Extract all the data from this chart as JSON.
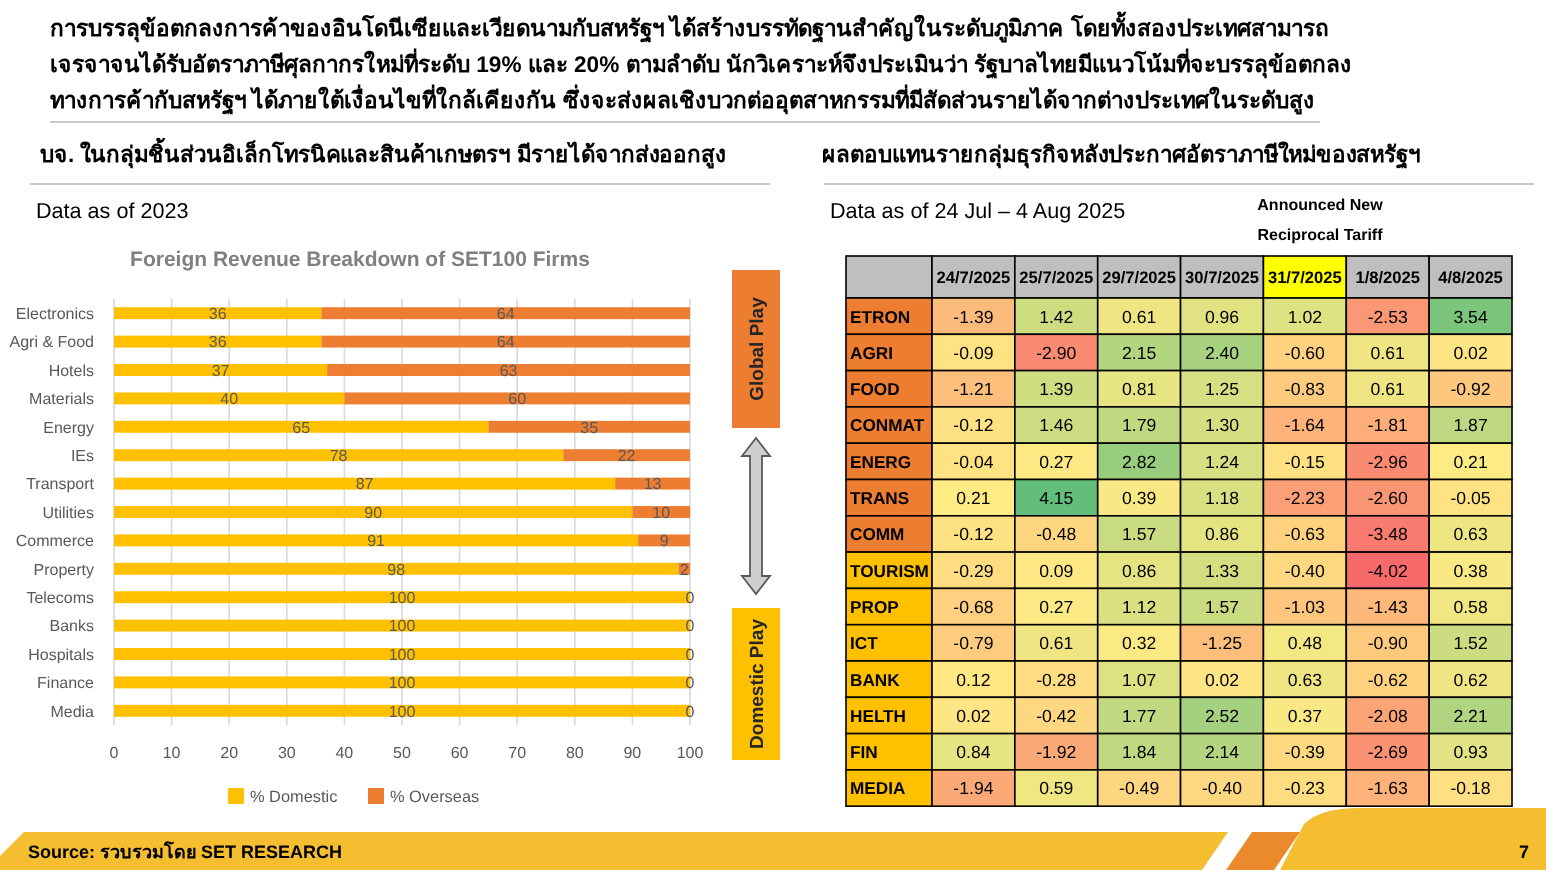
{
  "chart_data": [
    {
      "type": "bar",
      "orientation": "horizontal",
      "stacked": true,
      "title": "Foreign Revenue Breakdown of SET100 Firms",
      "categories": [
        "Electronics",
        "Agri & Food",
        "Hotels",
        "Materials",
        "Energy",
        "IEs",
        "Transport",
        "Utilities",
        "Commerce",
        "Property",
        "Telecoms",
        "Banks",
        "Hospitals",
        "Finance",
        "Media"
      ],
      "series": [
        {
          "name": "% Domestic",
          "color": "#ffc000",
          "values": [
            36,
            36,
            37,
            40,
            65,
            78,
            87,
            90,
            91,
            98,
            100,
            100,
            100,
            100,
            100
          ]
        },
        {
          "name": "% Overseas",
          "color": "#ed7d31",
          "values": [
            64,
            64,
            63,
            60,
            35,
            22,
            13,
            10,
            9,
            2,
            0,
            0,
            0,
            0,
            0
          ]
        }
      ],
      "xlim": [
        0,
        100
      ],
      "xticks": [
        0,
        10,
        20,
        30,
        40,
        50,
        60,
        70,
        80,
        90,
        100
      ],
      "grid": "x",
      "legend": "bottom",
      "data_labels": true,
      "annotations": [
        "การบรรลุข้อตกลงการค้าของอินโดนีเซียและเวียดนามกับสหรัฐฯ ได้สร้างบรรทัดฐานสำคัญในระดับภูมิภาค โดยทั้งสองประเทศสามารถ\nเจรจาจนได้รับอัตราภาษีศุลกากรใหม่ที่ระดับ 19% และ 20% ตามลำดับ นักวิเคราะห์จึงประเมินว่า รัฐบาลไทยมีแนวโน้มที่จะบรรลุข้อตกลง\nทางการค้ากับสหรัฐฯ ได้ภายใต้เงื่อนไขที่ใกล้เคียงกัน ซึ่งจะส่งผลเชิงบวกต่ออุตสาหกรรมที่มีสัดส่วนรายได้จากต่างประเทศในระดับสูง",
        "บจ. ในกลุ่มชิ้นส่วนอิเล็กโทรนิคและสินค้าเกษตรฯ มีรายได้จากส่งออกสูง",
        "Data as of 2023",
        "Global Play",
        "Domestic Play",
        "Source: รวบรวมโดย SET RESEARCH",
        "7"
      ]
    },
    {
      "type": "heatmap",
      "title": "ผลตอบแทนรายกลุ่มธุรกิจหลังประกาศอัตราภาษีใหม่ของสหรัฐฯ",
      "subtitle": "Data as of 24 Jul – 4 Aug 2025",
      "categories": [
        "24/7/2025",
        "25/7/2025",
        "29/7/2025",
        "30/7/2025",
        "31/7/2025",
        "1/8/2025",
        "4/8/2025"
      ],
      "y_categories": [
        "ETRON",
        "AGRI",
        "FOOD",
        "CONMAT",
        "ENERG",
        "TRANS",
        "COMM",
        "TOURISM",
        "PROP",
        "ICT",
        "BANK",
        "HELTH",
        "FIN",
        "MEDIA"
      ],
      "cells": [
        [
          -1.39,
          1.42,
          0.61,
          0.96,
          1.02,
          -2.53,
          3.54
        ],
        [
          -0.09,
          -2.9,
          2.15,
          2.4,
          -0.6,
          0.61,
          0.02
        ],
        [
          -1.21,
          1.39,
          0.81,
          1.25,
          -0.83,
          0.61,
          -0.92
        ],
        [
          -0.12,
          1.46,
          1.79,
          1.3,
          -1.64,
          -1.81,
          1.87
        ],
        [
          -0.04,
          0.27,
          2.82,
          1.24,
          -0.15,
          -2.96,
          0.21
        ],
        [
          0.21,
          4.15,
          0.39,
          1.18,
          -2.23,
          -2.6,
          -0.05
        ],
        [
          -0.12,
          -0.48,
          1.57,
          0.86,
          -0.63,
          -3.48,
          0.63
        ],
        [
          -0.29,
          0.09,
          0.86,
          1.33,
          -0.4,
          -4.02,
          0.38
        ],
        [
          -0.68,
          0.27,
          1.12,
          1.57,
          -1.03,
          -1.43,
          0.58
        ],
        [
          -0.79,
          0.61,
          0.32,
          -1.25,
          0.48,
          -0.9,
          1.52
        ],
        [
          0.12,
          -0.28,
          1.07,
          0.02,
          0.63,
          -0.62,
          0.62
        ],
        [
          0.02,
          -0.42,
          1.77,
          2.52,
          0.37,
          -2.08,
          2.21
        ],
        [
          0.84,
          -1.92,
          1.84,
          2.14,
          -0.39,
          -2.69,
          0.93
        ],
        [
          -1.94,
          0.59,
          -0.49,
          -0.4,
          -0.23,
          -1.63,
          -0.18
        ]
      ],
      "cell_labels": [
        [
          "-1.39",
          "1.42",
          "0.61",
          "0.96",
          "1.02",
          "-2.53",
          "3.54"
        ],
        [
          "-0.09",
          "-2.90",
          "2.15",
          "2.40",
          "-0.60",
          "0.61",
          "0.02"
        ],
        [
          "-1.21",
          "1.39",
          "0.81",
          "1.25",
          "-0.83",
          "0.61",
          "-0.92"
        ],
        [
          "-0.12",
          "1.46",
          "1.79",
          "1.30",
          "-1.64",
          "-1.81",
          "1.87"
        ],
        [
          "-0.04",
          "0.27",
          "2.82",
          "1.24",
          "-0.15",
          "-2.96",
          "0.21"
        ],
        [
          "0.21",
          "4.15",
          "0.39",
          "1.18",
          "-2.23",
          "-2.60",
          "-0.05"
        ],
        [
          "-0.12",
          "-0.48",
          "1.57",
          "0.86",
          "-0.63",
          "-3.48",
          "0.63"
        ],
        [
          "-0.29",
          "0.09",
          "0.86",
          "1.33",
          "-0.40",
          "-4.02",
          "0.38"
        ],
        [
          "-0.68",
          "0.27",
          "1.12",
          "1.57",
          "-1.03",
          "-1.43",
          "0.58"
        ],
        [
          "-0.79",
          "0.61",
          "0.32",
          "-1.25",
          "0.48",
          "-0.90",
          "1.52"
        ],
        [
          "0.12",
          "-0.28",
          "1.07",
          "0.02",
          "0.63",
          "-0.62",
          "0.62"
        ],
        [
          "0.02",
          "-0.42",
          "1.77",
          "2.52",
          "0.37",
          "-2.08",
          "2.21"
        ],
        [
          "0.84",
          "-1.92",
          "1.84",
          "2.14",
          "-0.39",
          "-2.69",
          "0.93"
        ],
        [
          "-1.94",
          "0.59",
          "-0.49",
          "-0.40",
          "-0.23",
          "-1.63",
          "-0.18"
        ]
      ],
      "annotations": [
        "Announced New Reciprocal Tariff"
      ]
    }
  ]
}
